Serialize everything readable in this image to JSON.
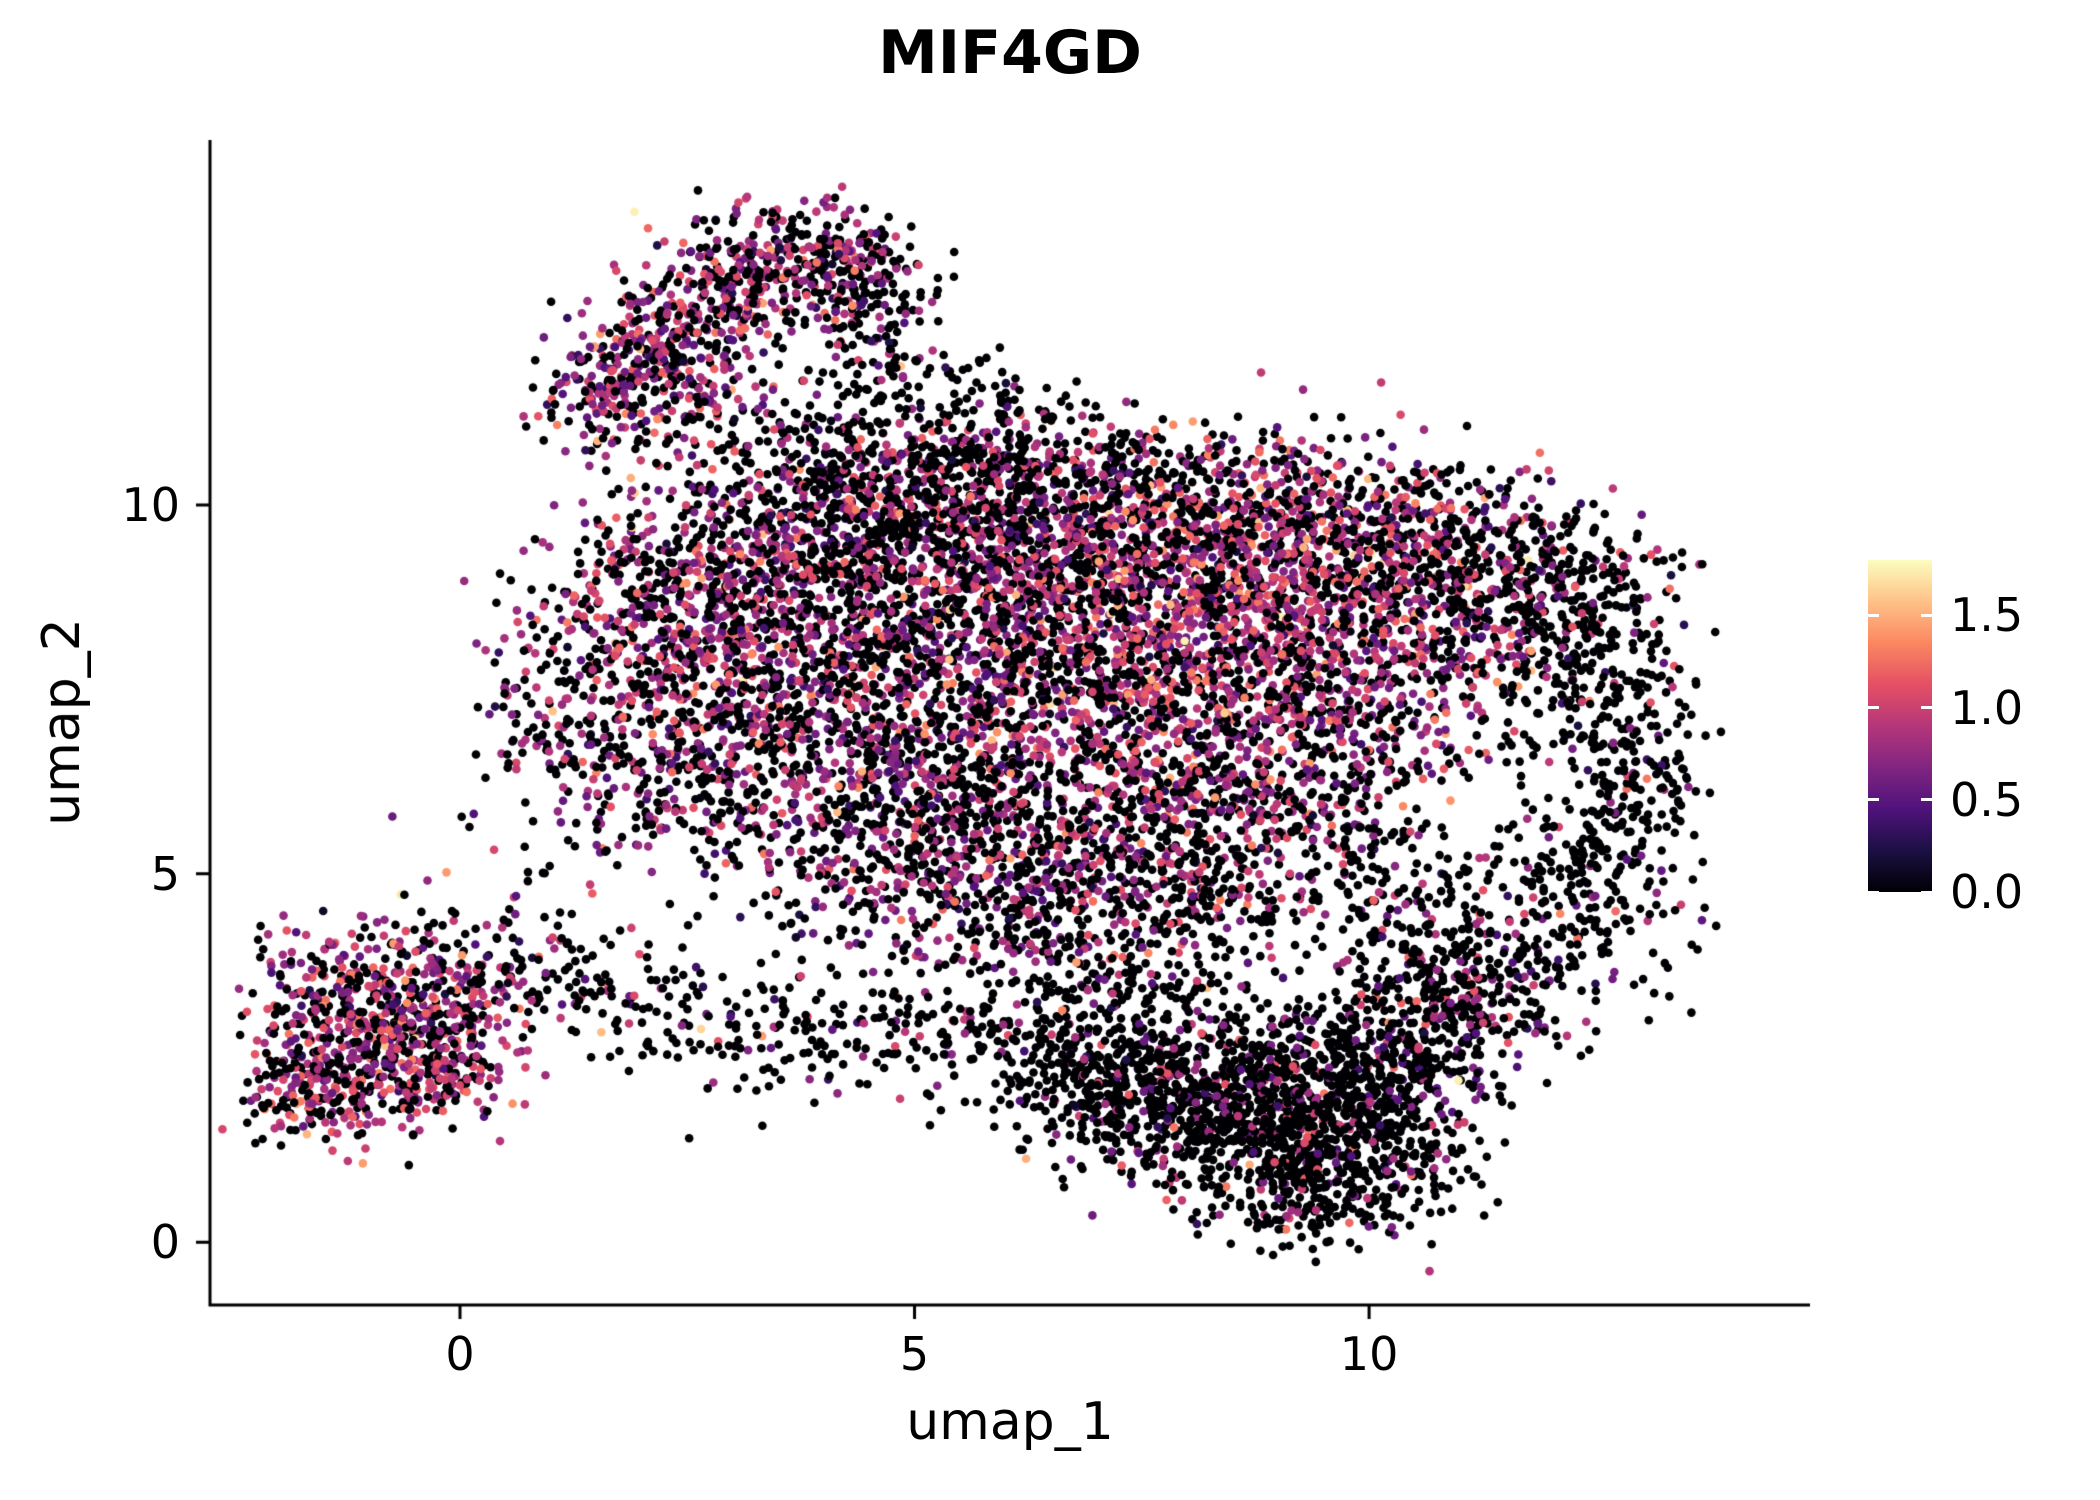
{
  "chart_data": {
    "type": "scatter",
    "title": "MIF4GD",
    "xlabel": "umap_1",
    "ylabel": "umap_2",
    "x_ticks": [
      0,
      5,
      10
    ],
    "y_ticks": [
      0,
      5,
      10
    ],
    "x_range": [
      -2.75,
      14.85
    ],
    "y_range": [
      -0.85,
      14.95
    ],
    "grid": false,
    "background": "#ffffff",
    "axis_color": "#000000",
    "point_radius_px": 4.3,
    "n_points_approx": 14200,
    "legend": {
      "type": "colorbar",
      "position": "right",
      "ticks": [
        "0.0",
        "0.5",
        "1.0",
        "1.5"
      ],
      "tick_values": [
        0.0,
        0.5,
        1.0,
        1.5
      ],
      "value_range": [
        0.0,
        1.8
      ]
    },
    "colormap": {
      "name": "magma",
      "stops": [
        [
          0.0,
          "#000004"
        ],
        [
          0.125,
          "#1c1044"
        ],
        [
          0.25,
          "#4f127b"
        ],
        [
          0.375,
          "#812581"
        ],
        [
          0.5,
          "#b5367a"
        ],
        [
          0.625,
          "#e55064"
        ],
        [
          0.75,
          "#fb8761"
        ],
        [
          0.875,
          "#fec287"
        ],
        [
          1.0,
          "#fcfdbf"
        ]
      ]
    },
    "cluster_format": [
      "n_points",
      "center_x",
      "center_y",
      "sd_x",
      "sd_y",
      "fraction_zero_expression",
      "mean_positive_expression"
    ],
    "expression_sd": 0.28,
    "clusters": [
      [
        150,
        1.6,
        11.5,
        0.35,
        0.45,
        0.45,
        0.8
      ],
      [
        180,
        2.2,
        12.1,
        0.4,
        0.45,
        0.4,
        0.85
      ],
      [
        200,
        2.9,
        12.8,
        0.45,
        0.45,
        0.4,
        0.85
      ],
      [
        220,
        3.7,
        13.4,
        0.55,
        0.4,
        0.45,
        0.8
      ],
      [
        130,
        4.4,
        13.0,
        0.35,
        0.45,
        0.6,
        0.75
      ],
      [
        100,
        4.6,
        12.0,
        0.45,
        0.7,
        0.8,
        0.7
      ],
      [
        90,
        3.6,
        11.0,
        0.55,
        0.5,
        0.7,
        0.75
      ],
      [
        70,
        2.6,
        11.2,
        0.4,
        0.4,
        0.5,
        0.8
      ],
      [
        70,
        5.0,
        10.8,
        0.7,
        0.5,
        0.85,
        0.7
      ],
      [
        60,
        5.9,
        11.2,
        0.5,
        0.4,
        0.9,
        0.6
      ],
      [
        80,
        5.3,
        10.2,
        0.6,
        0.5,
        0.85,
        0.7
      ],
      [
        220,
        4.6,
        10.2,
        0.9,
        0.45,
        0.6,
        0.8
      ],
      [
        260,
        6.0,
        10.4,
        1.0,
        0.45,
        0.65,
        0.8
      ],
      [
        260,
        7.5,
        10.2,
        1.0,
        0.5,
        0.55,
        0.85
      ],
      [
        280,
        9.0,
        10.0,
        1.0,
        0.5,
        0.45,
        0.9
      ],
      [
        220,
        10.4,
        9.7,
        0.9,
        0.5,
        0.55,
        0.85
      ],
      [
        180,
        11.6,
        9.2,
        0.8,
        0.5,
        0.75,
        0.8
      ],
      [
        300,
        2.3,
        8.9,
        0.8,
        0.7,
        0.45,
        0.85
      ],
      [
        340,
        3.5,
        9.3,
        0.9,
        0.6,
        0.5,
        0.85
      ],
      [
        320,
        5.0,
        9.3,
        1.0,
        0.6,
        0.6,
        0.8
      ],
      [
        320,
        6.5,
        9.2,
        1.0,
        0.6,
        0.55,
        0.85
      ],
      [
        360,
        8.0,
        9.0,
        1.0,
        0.6,
        0.35,
        0.95
      ],
      [
        340,
        9.4,
        8.9,
        1.0,
        0.6,
        0.35,
        0.95
      ],
      [
        240,
        10.8,
        8.6,
        0.9,
        0.6,
        0.55,
        0.85
      ],
      [
        120,
        1.2,
        7.4,
        0.5,
        0.8,
        0.55,
        0.8
      ],
      [
        300,
        2.7,
        7.8,
        0.9,
        0.7,
        0.5,
        0.85
      ],
      [
        340,
        4.2,
        8.0,
        1.0,
        0.7,
        0.55,
        0.8
      ],
      [
        340,
        5.7,
        8.0,
        1.0,
        0.7,
        0.55,
        0.85
      ],
      [
        380,
        7.2,
        7.9,
        1.0,
        0.7,
        0.4,
        0.95
      ],
      [
        380,
        8.7,
        7.8,
        1.0,
        0.7,
        0.35,
        0.95
      ],
      [
        260,
        10.1,
        7.6,
        0.9,
        0.7,
        0.5,
        0.85
      ],
      [
        260,
        2.4,
        6.4,
        0.8,
        0.7,
        0.55,
        0.8
      ],
      [
        300,
        3.8,
        6.5,
        1.0,
        0.7,
        0.55,
        0.8
      ],
      [
        300,
        5.3,
        6.5,
        1.0,
        0.7,
        0.6,
        0.8
      ],
      [
        300,
        6.8,
        6.4,
        1.0,
        0.7,
        0.55,
        0.85
      ],
      [
        280,
        8.3,
        6.3,
        0.9,
        0.7,
        0.5,
        0.85
      ],
      [
        200,
        9.6,
        6.4,
        0.8,
        0.7,
        0.6,
        0.8
      ],
      [
        200,
        4.6,
        5.2,
        0.9,
        0.6,
        0.65,
        0.75
      ],
      [
        220,
        6.0,
        5.1,
        0.9,
        0.6,
        0.6,
        0.8
      ],
      [
        200,
        7.4,
        5.0,
        0.9,
        0.6,
        0.6,
        0.8
      ],
      [
        160,
        8.7,
        4.9,
        0.8,
        0.6,
        0.65,
        0.8
      ],
      [
        140,
        5.5,
        4.3,
        0.9,
        0.5,
        0.7,
        0.75
      ],
      [
        120,
        7.0,
        4.2,
        0.8,
        0.5,
        0.7,
        0.75
      ],
      [
        100,
        12.3,
        8.6,
        0.6,
        0.5,
        0.8,
        0.75
      ],
      [
        160,
        12.4,
        7.6,
        0.55,
        0.8,
        0.85,
        0.75
      ],
      [
        140,
        12.9,
        6.4,
        0.45,
        0.8,
        0.88,
        0.7
      ],
      [
        130,
        12.7,
        5.2,
        0.5,
        0.7,
        0.85,
        0.7
      ],
      [
        120,
        12.0,
        4.4,
        0.6,
        0.6,
        0.85,
        0.7
      ],
      [
        130,
        11.2,
        3.7,
        0.6,
        0.55,
        0.8,
        0.75
      ],
      [
        100,
        10.4,
        4.7,
        0.6,
        0.6,
        0.75,
        0.8
      ],
      [
        140,
        6.6,
        2.9,
        0.8,
        0.5,
        0.85,
        0.7
      ],
      [
        240,
        7.6,
        2.5,
        0.9,
        0.55,
        0.85,
        0.75
      ],
      [
        300,
        8.6,
        2.2,
        0.9,
        0.55,
        0.82,
        0.8
      ],
      [
        300,
        9.5,
        2.1,
        0.8,
        0.55,
        0.8,
        0.8
      ],
      [
        240,
        10.3,
        2.6,
        0.7,
        0.55,
        0.8,
        0.75
      ],
      [
        150,
        10.9,
        3.3,
        0.6,
        0.5,
        0.8,
        0.75
      ],
      [
        280,
        8.9,
        1.3,
        0.9,
        0.45,
        0.85,
        0.8
      ],
      [
        200,
        9.9,
        1.1,
        0.7,
        0.4,
        0.85,
        0.8
      ],
      [
        150,
        7.9,
        1.6,
        0.7,
        0.4,
        0.85,
        0.75
      ],
      [
        100,
        7.0,
        2.0,
        0.6,
        0.4,
        0.85,
        0.7
      ],
      [
        120,
        9.3,
        0.5,
        0.6,
        0.3,
        0.85,
        0.8
      ],
      [
        200,
        -1.3,
        3.3,
        0.5,
        0.6,
        0.35,
        0.85
      ],
      [
        200,
        -0.7,
        3.0,
        0.5,
        0.6,
        0.35,
        0.85
      ],
      [
        150,
        -1.5,
        2.3,
        0.4,
        0.45,
        0.4,
        0.85
      ],
      [
        150,
        -0.5,
        2.2,
        0.5,
        0.4,
        0.4,
        0.85
      ],
      [
        120,
        0.0,
        3.5,
        0.45,
        0.5,
        0.45,
        0.8
      ],
      [
        100,
        -0.2,
        2.7,
        0.4,
        0.4,
        0.4,
        0.85
      ],
      [
        60,
        -1.8,
        2.0,
        0.3,
        0.3,
        0.5,
        0.8
      ],
      [
        60,
        0.9,
        3.9,
        0.5,
        0.45,
        0.7,
        0.75
      ],
      [
        60,
        1.9,
        3.4,
        0.6,
        0.4,
        0.75,
        0.7
      ],
      [
        70,
        2.9,
        3.0,
        0.7,
        0.4,
        0.8,
        0.7
      ],
      [
        80,
        4.1,
        2.8,
        0.8,
        0.4,
        0.8,
        0.75
      ],
      [
        60,
        5.2,
        2.9,
        0.6,
        0.35,
        0.8,
        0.75
      ]
    ]
  },
  "colors": {
    "background": "#ffffff",
    "axis": "#000000",
    "text": "#000000",
    "colorbar_tick": "#ffffff"
  }
}
